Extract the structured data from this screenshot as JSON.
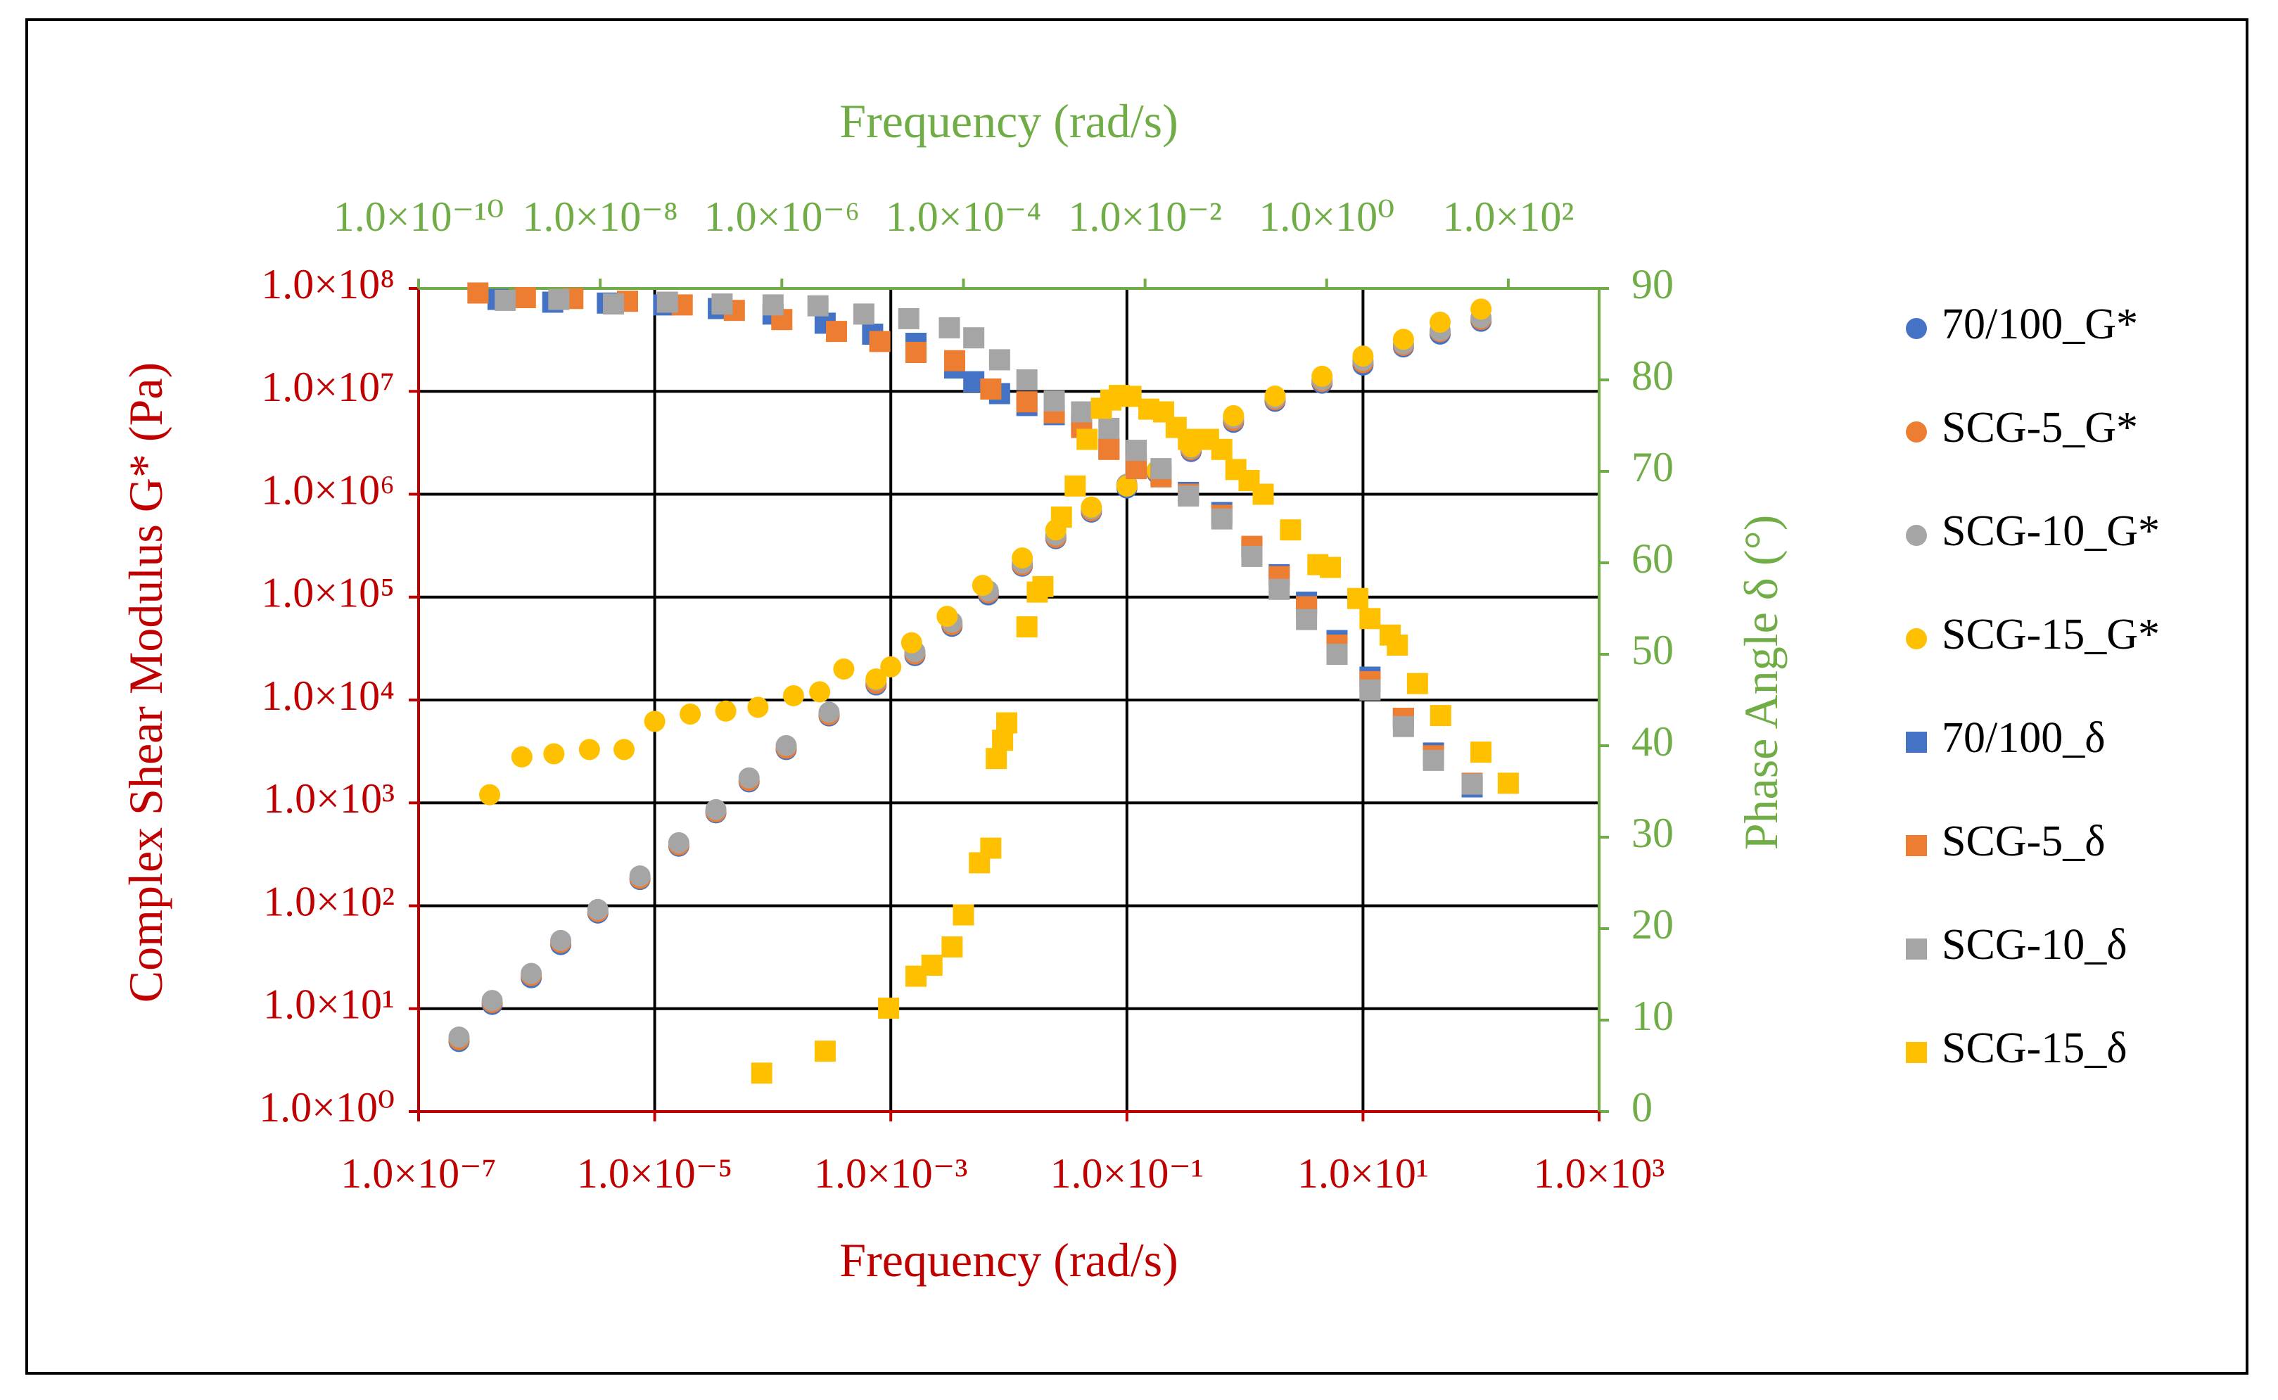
{
  "chart_data": {
    "type": "scatter",
    "title": "",
    "xlabel_bottom": "Frequency (rad/s)",
    "xlabel_top": "Frequency (rad/s)",
    "ylabel_left": "Complex Shear Modulus G* (Pa)",
    "ylabel_right": "Phase Angle δ (°)",
    "x_bottom": {
      "scale": "log",
      "range": [
        1e-07,
        1000.0
      ],
      "ticks": [
        1e-07,
        1e-05,
        0.001,
        0.1,
        10.0,
        1000.0
      ],
      "tick_labels": [
        "1.0×10⁻⁷",
        "1.0×10⁻⁵",
        "1.0×10⁻³",
        "1.0×10⁻¹",
        "1.0×10¹",
        "1.0×10³"
      ]
    },
    "x_top": {
      "scale": "log",
      "range": [
        1e-10,
        1000.0
      ],
      "ticks": [
        1e-10,
        1e-08,
        1e-06,
        0.0001,
        0.01,
        1.0,
        100.0
      ],
      "tick_labels": [
        "1.0×10⁻¹⁰",
        "1.0×10⁻⁸",
        "1.0×10⁻⁶",
        "1.0×10⁻⁴",
        "1.0×10⁻²",
        "1.0×10⁰",
        "1.0×10²"
      ]
    },
    "y_left": {
      "scale": "log",
      "range": [
        1,
        100000000.0
      ],
      "ticks": [
        1,
        10,
        100,
        1000,
        10000,
        100000,
        1000000,
        10000000,
        100000000
      ],
      "tick_labels": [
        "1.0×10⁰",
        "1.0×10¹",
        "1.0×10²",
        "1.0×10³",
        "1.0×10⁴",
        "1.0×10⁵",
        "1.0×10⁶",
        "1.0×10⁷",
        "1.0×10⁸"
      ]
    },
    "y_right": {
      "scale": "linear",
      "range": [
        0,
        90
      ],
      "ticks": [
        0,
        10,
        20,
        30,
        40,
        50,
        60,
        70,
        80,
        90
      ],
      "tick_labels": [
        "0",
        "10",
        "20",
        "30",
        "40",
        "50",
        "60",
        "70",
        "80",
        "90"
      ]
    },
    "grid": true,
    "legend_position": "right",
    "series": [
      {
        "name": "70/100_G*",
        "marker": "circle",
        "axis_x": "bottom",
        "axis_y": "left",
        "color": "#4472C4",
        "points": [
          [
            2.2e-07,
            4.8
          ],
          [
            4.2e-07,
            11
          ],
          [
            9e-07,
            20
          ],
          [
            1.6e-06,
            42
          ],
          [
            3.3e-06,
            85
          ],
          [
            7.5e-06,
            180
          ],
          [
            1.6e-05,
            380
          ],
          [
            3.3e-05,
            800
          ],
          [
            6.3e-05,
            1600
          ],
          [
            0.00013,
            3300
          ],
          [
            0.0003,
            7000
          ],
          [
            0.00075,
            14000
          ],
          [
            0.0016,
            27000
          ],
          [
            0.0033,
            52000
          ],
          [
            0.0067,
            105000.0
          ],
          [
            0.013,
            200000.0
          ],
          [
            0.025,
            370000.0
          ],
          [
            0.05,
            670000.0
          ],
          [
            0.1,
            1150000.0
          ],
          [
            0.18,
            1600000.0
          ],
          [
            0.35,
            2600000.0
          ],
          [
            0.8,
            5000000.0
          ],
          [
            1.8,
            8000000.0
          ],
          [
            4.5,
            12000000.0
          ],
          [
            10.0,
            18000000.0
          ],
          [
            22.0,
            27000000.0
          ],
          [
            45.0,
            36000000.0
          ],
          [
            100.0,
            48000000.0
          ]
        ]
      },
      {
        "name": "SCG-5_G*",
        "marker": "circle",
        "axis_x": "bottom",
        "axis_y": "left",
        "color": "#ED7D31",
        "points": [
          [
            2.2e-07,
            5
          ],
          [
            4.2e-07,
            11.5
          ],
          [
            9e-07,
            21
          ],
          [
            1.6e-06,
            44
          ],
          [
            3.3e-06,
            88
          ],
          [
            7.5e-06,
            185
          ],
          [
            1.6e-05,
            390
          ],
          [
            3.3e-05,
            820
          ],
          [
            6.3e-05,
            1650
          ],
          [
            0.00013,
            3400
          ],
          [
            0.0003,
            7200
          ],
          [
            0.00075,
            14500
          ],
          [
            0.0016,
            28000
          ],
          [
            0.0033,
            54000
          ],
          [
            0.0067,
            110000.0
          ],
          [
            0.013,
            205000.0
          ],
          [
            0.025,
            380000.0
          ],
          [
            0.05,
            690000.0
          ],
          [
            0.1,
            1200000.0
          ],
          [
            0.18,
            1650000.0
          ],
          [
            0.35,
            2700000.0
          ],
          [
            0.8,
            5200000.0
          ],
          [
            1.8,
            8300000.0
          ],
          [
            4.5,
            12500000.0
          ],
          [
            10.0,
            19000000.0
          ],
          [
            22.0,
            28000000.0
          ],
          [
            45.0,
            38000000.0
          ],
          [
            100.0,
            50000000.0
          ]
        ]
      },
      {
        "name": "SCG-10_G*",
        "marker": "circle",
        "axis_x": "bottom",
        "axis_y": "left",
        "color": "#A5A5A5",
        "points": [
          [
            2.2e-07,
            5.3
          ],
          [
            4.2e-07,
            12
          ],
          [
            9e-07,
            22
          ],
          [
            1.6e-06,
            46
          ],
          [
            3.3e-06,
            92
          ],
          [
            7.5e-06,
            195
          ],
          [
            1.6e-05,
            410
          ],
          [
            3.3e-05,
            860
          ],
          [
            6.3e-05,
            1750
          ],
          [
            0.00013,
            3600
          ],
          [
            0.0003,
            7600
          ],
          [
            0.00075,
            15500
          ],
          [
            0.0016,
            29500
          ],
          [
            0.0033,
            57000
          ],
          [
            0.0067,
            115000.0
          ],
          [
            0.013,
            215000.0
          ],
          [
            0.025,
            400000.0
          ],
          [
            0.05,
            720000.0
          ],
          [
            0.1,
            1250000.0
          ],
          [
            0.18,
            1700000.0
          ],
          [
            0.35,
            2800000.0
          ],
          [
            0.8,
            5500000.0
          ],
          [
            1.8,
            8600000.0
          ],
          [
            4.5,
            13000000.0
          ],
          [
            10.0,
            20000000.0
          ],
          [
            22.0,
            29000000.0
          ],
          [
            45.0,
            39000000.0
          ],
          [
            100.0,
            52000000.0
          ]
        ]
      },
      {
        "name": "SCG-15_G*",
        "marker": "circle",
        "axis_x": "bottom",
        "axis_y": "left",
        "color": "#FFC000",
        "points": [
          [
            4e-07,
            1200
          ],
          [
            7.5e-07,
            2800
          ],
          [
            1.4e-06,
            3000
          ],
          [
            2.8e-06,
            3300
          ],
          [
            5.5e-06,
            3300
          ],
          [
            1e-05,
            6200
          ],
          [
            2e-05,
            7300
          ],
          [
            4e-05,
            7800
          ],
          [
            7.5e-05,
            8500
          ],
          [
            0.00015,
            11000
          ],
          [
            0.00025,
            12000
          ],
          [
            0.0004,
            20000
          ],
          [
            0.00075,
            16000
          ],
          [
            0.001,
            21000
          ],
          [
            0.0015,
            36000
          ],
          [
            0.003,
            65000
          ],
          [
            0.006,
            130000.0
          ],
          [
            0.013,
            240000.0
          ],
          [
            0.025,
            450000.0
          ],
          [
            0.05,
            750000.0
          ],
          [
            0.1,
            1200000.0
          ],
          [
            0.18,
            1700000.0
          ],
          [
            0.35,
            2900000.0
          ],
          [
            0.8,
            5800000.0
          ],
          [
            1.8,
            9000000.0
          ],
          [
            4.5,
            14000000.0
          ],
          [
            10.0,
            22000000.0
          ],
          [
            22.0,
            32000000.0
          ],
          [
            45.0,
            47000000.0
          ],
          [
            100.0,
            63000000.0
          ]
        ]
      },
      {
        "name": "70/100_δ",
        "marker": "square",
        "axis_x": "top",
        "axis_y": "right",
        "color": "#4472C4",
        "points": [
          [
            7.5e-10,
            88.8
          ],
          [
            3e-09,
            88.5
          ],
          [
            1.2e-08,
            88.4
          ],
          [
            5e-08,
            88.2
          ],
          [
            2e-07,
            87.8
          ],
          [
            8e-07,
            87.2
          ],
          [
            3e-06,
            86.2
          ],
          [
            1e-05,
            85
          ],
          [
            3e-05,
            84
          ],
          [
            8e-05,
            81.3
          ],
          [
            0.00013,
            79.8
          ],
          [
            0.00025,
            78.5
          ],
          [
            0.0005,
            77.2
          ],
          [
            0.001,
            76.2
          ],
          [
            0.002,
            75.3
          ],
          [
            0.004,
            72.5
          ],
          [
            0.008,
            70.7
          ],
          [
            0.015,
            69.7
          ],
          [
            0.03,
            67.7
          ],
          [
            0.07,
            65.5
          ],
          [
            0.15,
            61.6
          ],
          [
            0.3,
            58.7
          ],
          [
            0.6,
            55.7
          ],
          [
            1.3,
            51.5
          ],
          [
            3,
            47.5
          ],
          [
            7,
            43
          ],
          [
            15.0,
            39.2
          ],
          [
            40.0,
            35.5
          ]
        ]
      },
      {
        "name": "SCG-5_δ",
        "marker": "square",
        "axis_x": "top",
        "axis_y": "right",
        "color": "#ED7D31",
        "points": [
          [
            4.5e-10,
            89.5
          ],
          [
            1.5e-09,
            89
          ],
          [
            5e-09,
            88.9
          ],
          [
            2e-08,
            88.6
          ],
          [
            8e-08,
            88.2
          ],
          [
            3e-07,
            87.6
          ],
          [
            1e-06,
            86.6
          ],
          [
            4e-06,
            85.3
          ],
          [
            1.2e-05,
            84.2
          ],
          [
            3e-05,
            83
          ],
          [
            8e-05,
            82.1
          ],
          [
            0.0002,
            79
          ],
          [
            0.0005,
            77.6
          ],
          [
            0.001,
            76.4
          ],
          [
            0.002,
            74.8
          ],
          [
            0.004,
            72.4
          ],
          [
            0.008,
            70.3
          ],
          [
            0.015,
            69.4
          ],
          [
            0.03,
            67.5
          ],
          [
            0.07,
            65.2
          ],
          [
            0.15,
            61.8
          ],
          [
            0.3,
            58.5
          ],
          [
            0.6,
            55.2
          ],
          [
            1.3,
            51
          ],
          [
            3,
            47
          ],
          [
            7,
            43
          ],
          [
            15.0,
            38.9
          ],
          [
            40.0,
            35.9
          ]
        ]
      },
      {
        "name": "SCG-10_δ",
        "marker": "square",
        "axis_x": "top",
        "axis_y": "right",
        "color": "#A5A5A5",
        "points": [
          [
            9e-10,
            88.7
          ],
          [
            3.5e-09,
            88.8
          ],
          [
            1.4e-08,
            88.3
          ],
          [
            5.5e-08,
            88.5
          ],
          [
            2.2e-07,
            88.3
          ],
          [
            8e-07,
            88.2
          ],
          [
            2.5e-06,
            88.1
          ],
          [
            8e-06,
            87.2
          ],
          [
            2.5e-05,
            86.7
          ],
          [
            7e-05,
            85.7
          ],
          [
            0.00013,
            84.6
          ],
          [
            0.00025,
            82.2
          ],
          [
            0.0005,
            80
          ],
          [
            0.001,
            77.7
          ],
          [
            0.002,
            76.5
          ],
          [
            0.004,
            74.7
          ],
          [
            0.008,
            72.3
          ],
          [
            0.015,
            70.3
          ],
          [
            0.03,
            67.3
          ],
          [
            0.07,
            64.8
          ],
          [
            0.15,
            60.7
          ],
          [
            0.3,
            57.1
          ],
          [
            0.6,
            53.8
          ],
          [
            1.3,
            50
          ],
          [
            3,
            46.1
          ],
          [
            7,
            42.1
          ],
          [
            15.0,
            38.4
          ],
          [
            40.0,
            35.8
          ]
        ]
      },
      {
        "name": "SCG-15_δ",
        "marker": "square",
        "axis_x": "top",
        "axis_y": "right",
        "color": "#FFC000",
        "points": [
          [
            6e-07,
            4.2
          ],
          [
            3e-06,
            6.6
          ],
          [
            1.5e-05,
            11.3
          ],
          [
            3e-05,
            14.8
          ],
          [
            4.5e-05,
            16
          ],
          [
            7.5e-05,
            18
          ],
          [
            0.0001,
            21.5
          ],
          [
            0.00015,
            27.2
          ],
          [
            0.0002,
            28.8
          ],
          [
            0.00023,
            38.6
          ],
          [
            0.00027,
            40.6
          ],
          [
            0.0003,
            42.5
          ],
          [
            0.0005,
            53
          ],
          [
            0.00065,
            56.8
          ],
          [
            0.00075,
            57.4
          ],
          [
            0.0012,
            65
          ],
          [
            0.0017,
            68.4
          ],
          [
            0.0023,
            73.5
          ],
          [
            0.0033,
            76.9
          ],
          [
            0.0042,
            77.8
          ],
          [
            0.0052,
            78.3
          ],
          [
            0.007,
            78.2
          ],
          [
            0.011,
            76.8
          ],
          [
            0.016,
            76.5
          ],
          [
            0.022,
            74.8
          ],
          [
            0.03,
            73.5
          ],
          [
            0.05,
            73.5
          ],
          [
            0.07,
            72.4
          ],
          [
            0.1,
            70.2
          ],
          [
            0.14,
            69
          ],
          [
            0.2,
            67.5
          ],
          [
            0.4,
            63.6
          ],
          [
            0.8,
            59.8
          ],
          [
            1.1,
            59.5
          ],
          [
            2.2,
            56.1
          ],
          [
            3,
            53.9
          ],
          [
            5,
            52.1
          ],
          [
            6,
            51
          ],
          [
            10.0,
            46.8
          ],
          [
            18.0,
            43.3
          ],
          [
            50.0,
            39.3
          ],
          [
            100.0,
            35.9
          ]
        ]
      }
    ]
  }
}
